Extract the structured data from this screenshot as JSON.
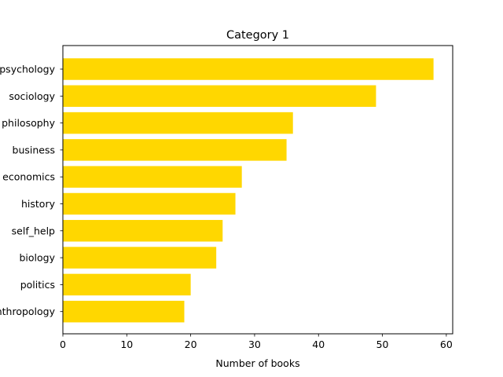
{
  "chart_data": {
    "type": "bar",
    "orientation": "horizontal",
    "title": "Category 1",
    "xlabel": "Number of books",
    "ylabel": "",
    "categories": [
      "psychology",
      "sociology",
      "philosophy",
      "business",
      "economics",
      "history",
      "self_help",
      "biology",
      "politics",
      "anthropology"
    ],
    "values": [
      58,
      49,
      36,
      35,
      28,
      27,
      25,
      24,
      20,
      19
    ],
    "xlim": [
      0,
      61
    ],
    "xticks": [
      0,
      10,
      20,
      30,
      40,
      50,
      60
    ],
    "bar_color": "#ffd700",
    "grid": false,
    "legend": "none"
  }
}
